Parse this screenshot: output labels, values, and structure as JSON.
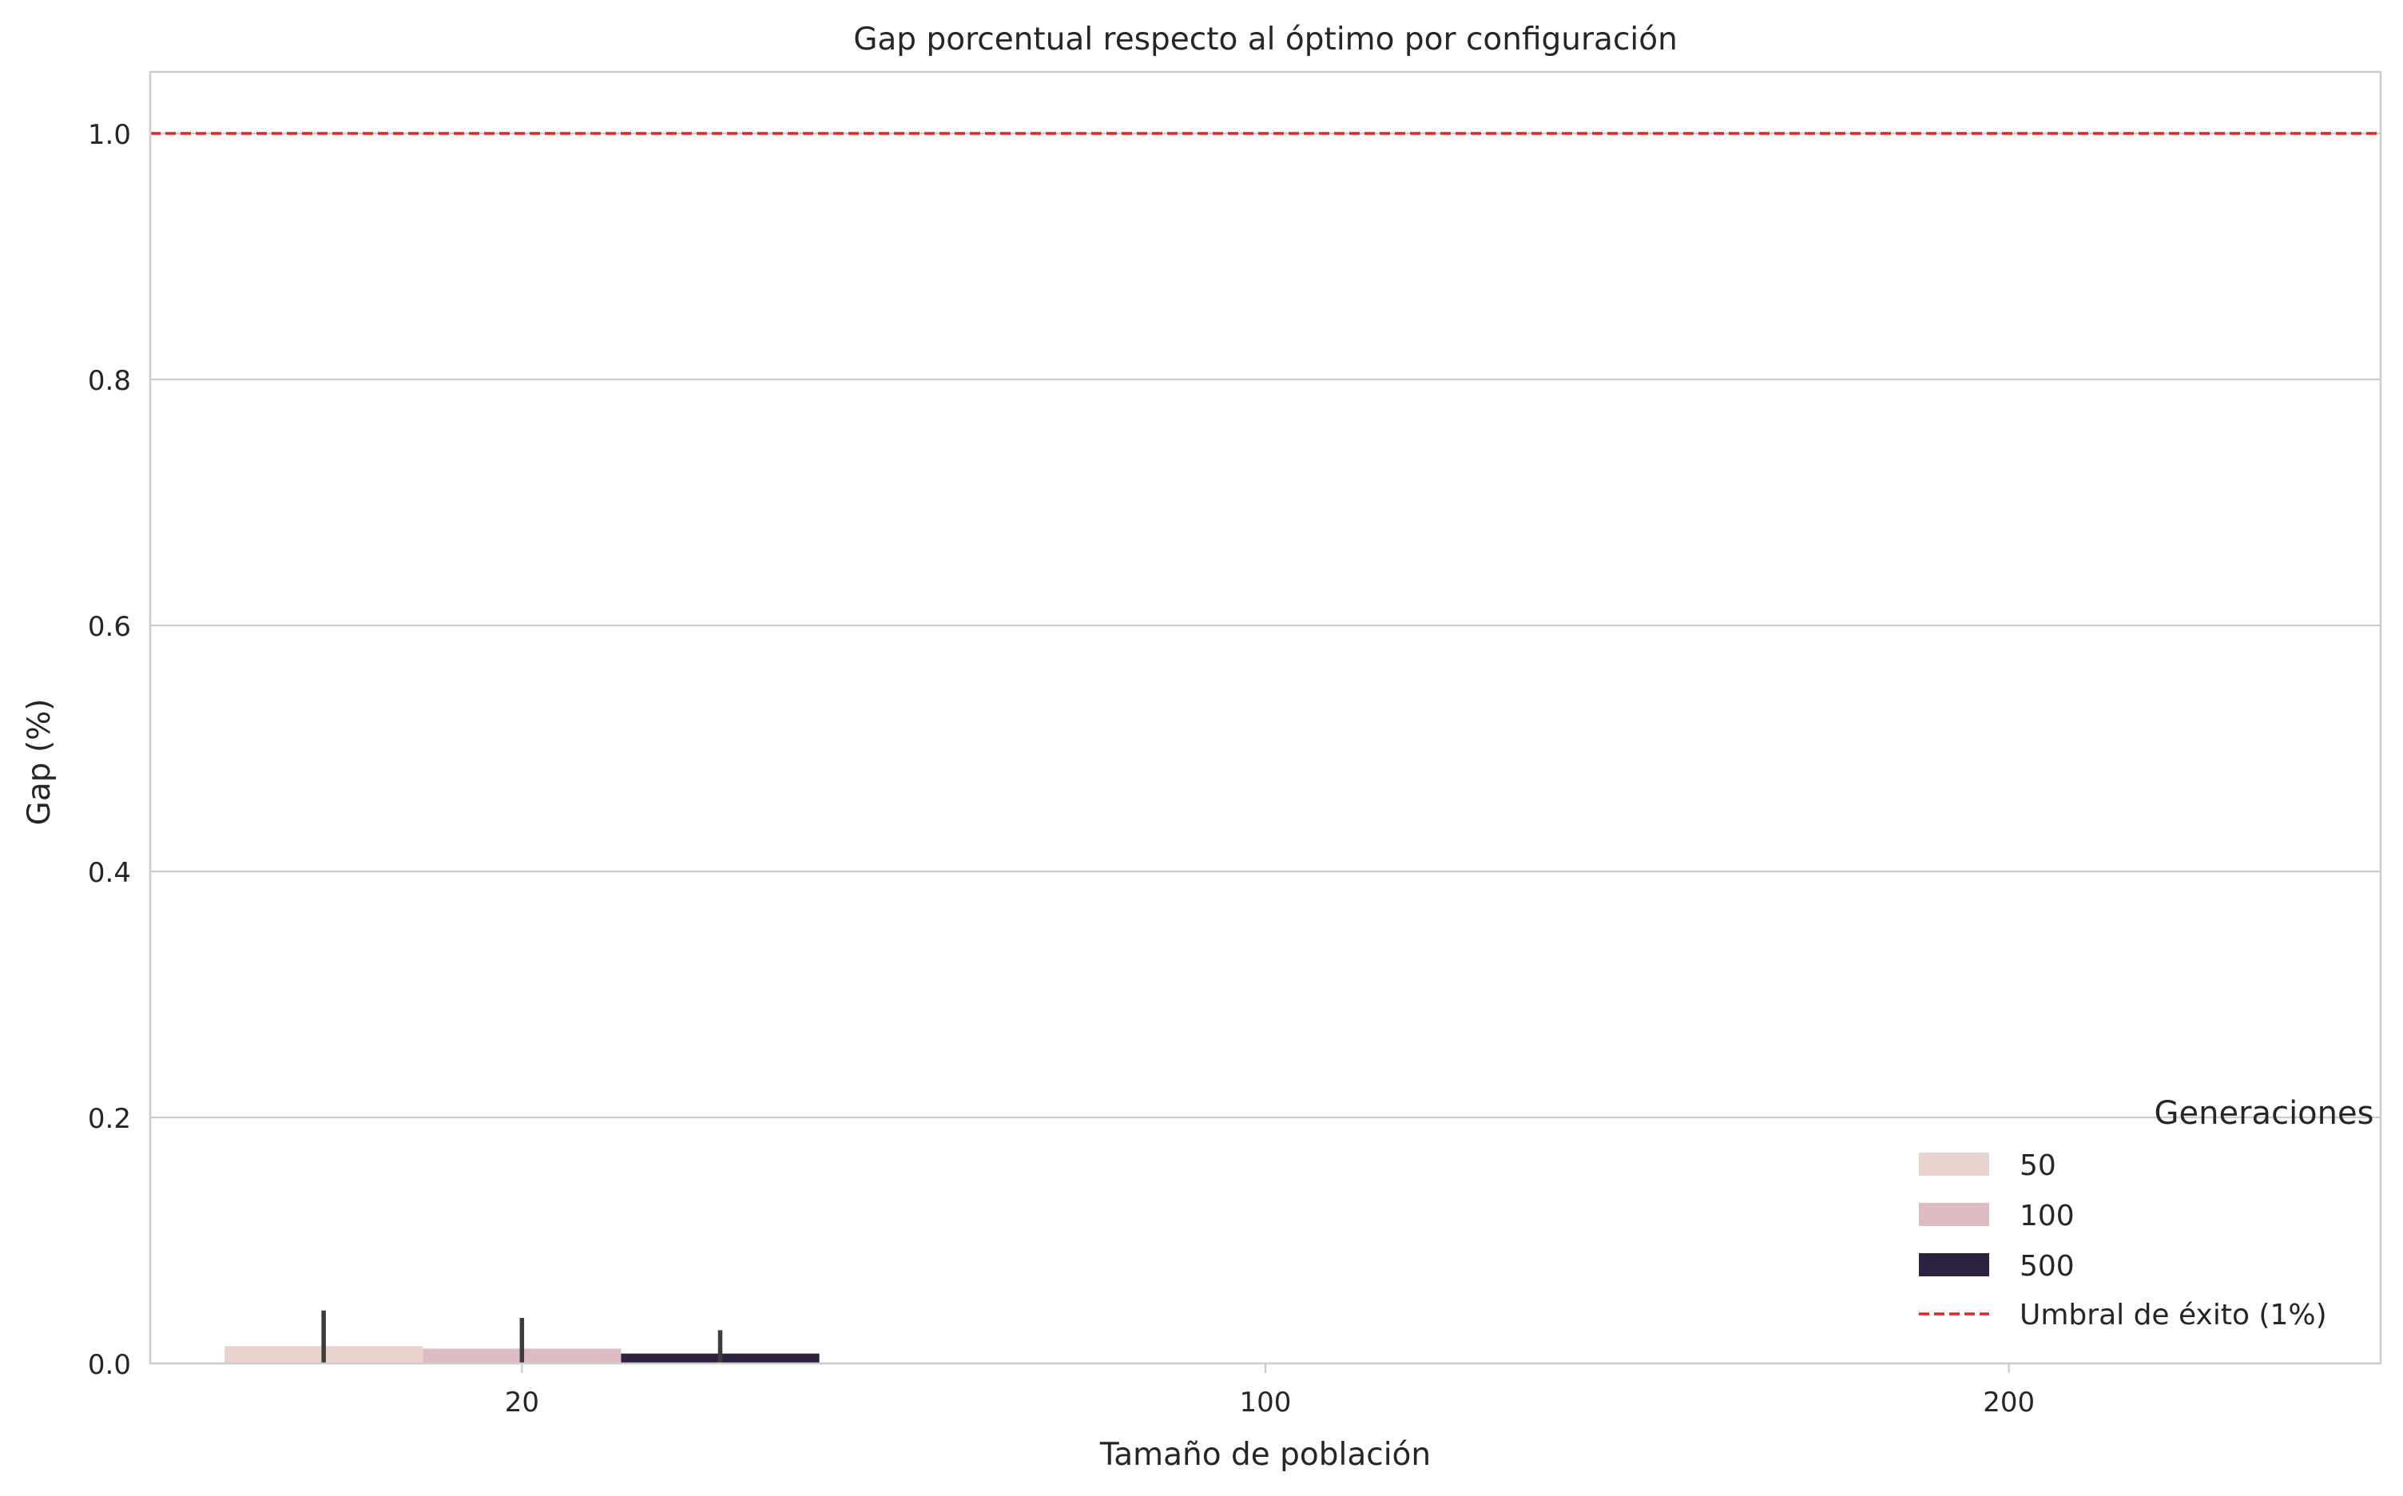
{
  "chart_data": {
    "type": "bar",
    "title": "Gap porcentual respecto al óptimo por configuración",
    "xlabel": "Tamaño de población",
    "ylabel": "Gap (%)",
    "categories": [
      "20",
      "100",
      "200"
    ],
    "ylim": [
      0,
      1.05
    ],
    "yticks": [
      "0.0",
      "0.2",
      "0.4",
      "0.6",
      "0.8",
      "1.0"
    ],
    "grid": "horizontal",
    "legend": {
      "title": "Generaciones",
      "placement": "bottom-right",
      "threshold_label": "Umbral de éxito (1%)"
    },
    "series": [
      {
        "name": "50",
        "color": "#e8d3cf",
        "values": [
          0.014,
          null,
          null
        ],
        "err_high": [
          0.043,
          null,
          null
        ],
        "err_low": [
          0.0,
          null,
          null
        ]
      },
      {
        "name": "100",
        "color": "#dcbcc2",
        "values": [
          0.012,
          null,
          null
        ],
        "err_high": [
          0.037,
          null,
          null
        ],
        "err_low": [
          0.0,
          null,
          null
        ]
      },
      {
        "name": "500",
        "color": "#2d213f",
        "values": [
          0.008,
          null,
          null
        ],
        "err_high": [
          0.027,
          null,
          null
        ],
        "err_low": [
          0.0,
          null,
          null
        ]
      }
    ],
    "threshold": {
      "value": 1.0,
      "color": "#e8231f",
      "style": "dashed"
    },
    "colors": {
      "grid": "#cccccc",
      "axis": "#cccccc",
      "errorbar": "#3c3c3c"
    }
  }
}
